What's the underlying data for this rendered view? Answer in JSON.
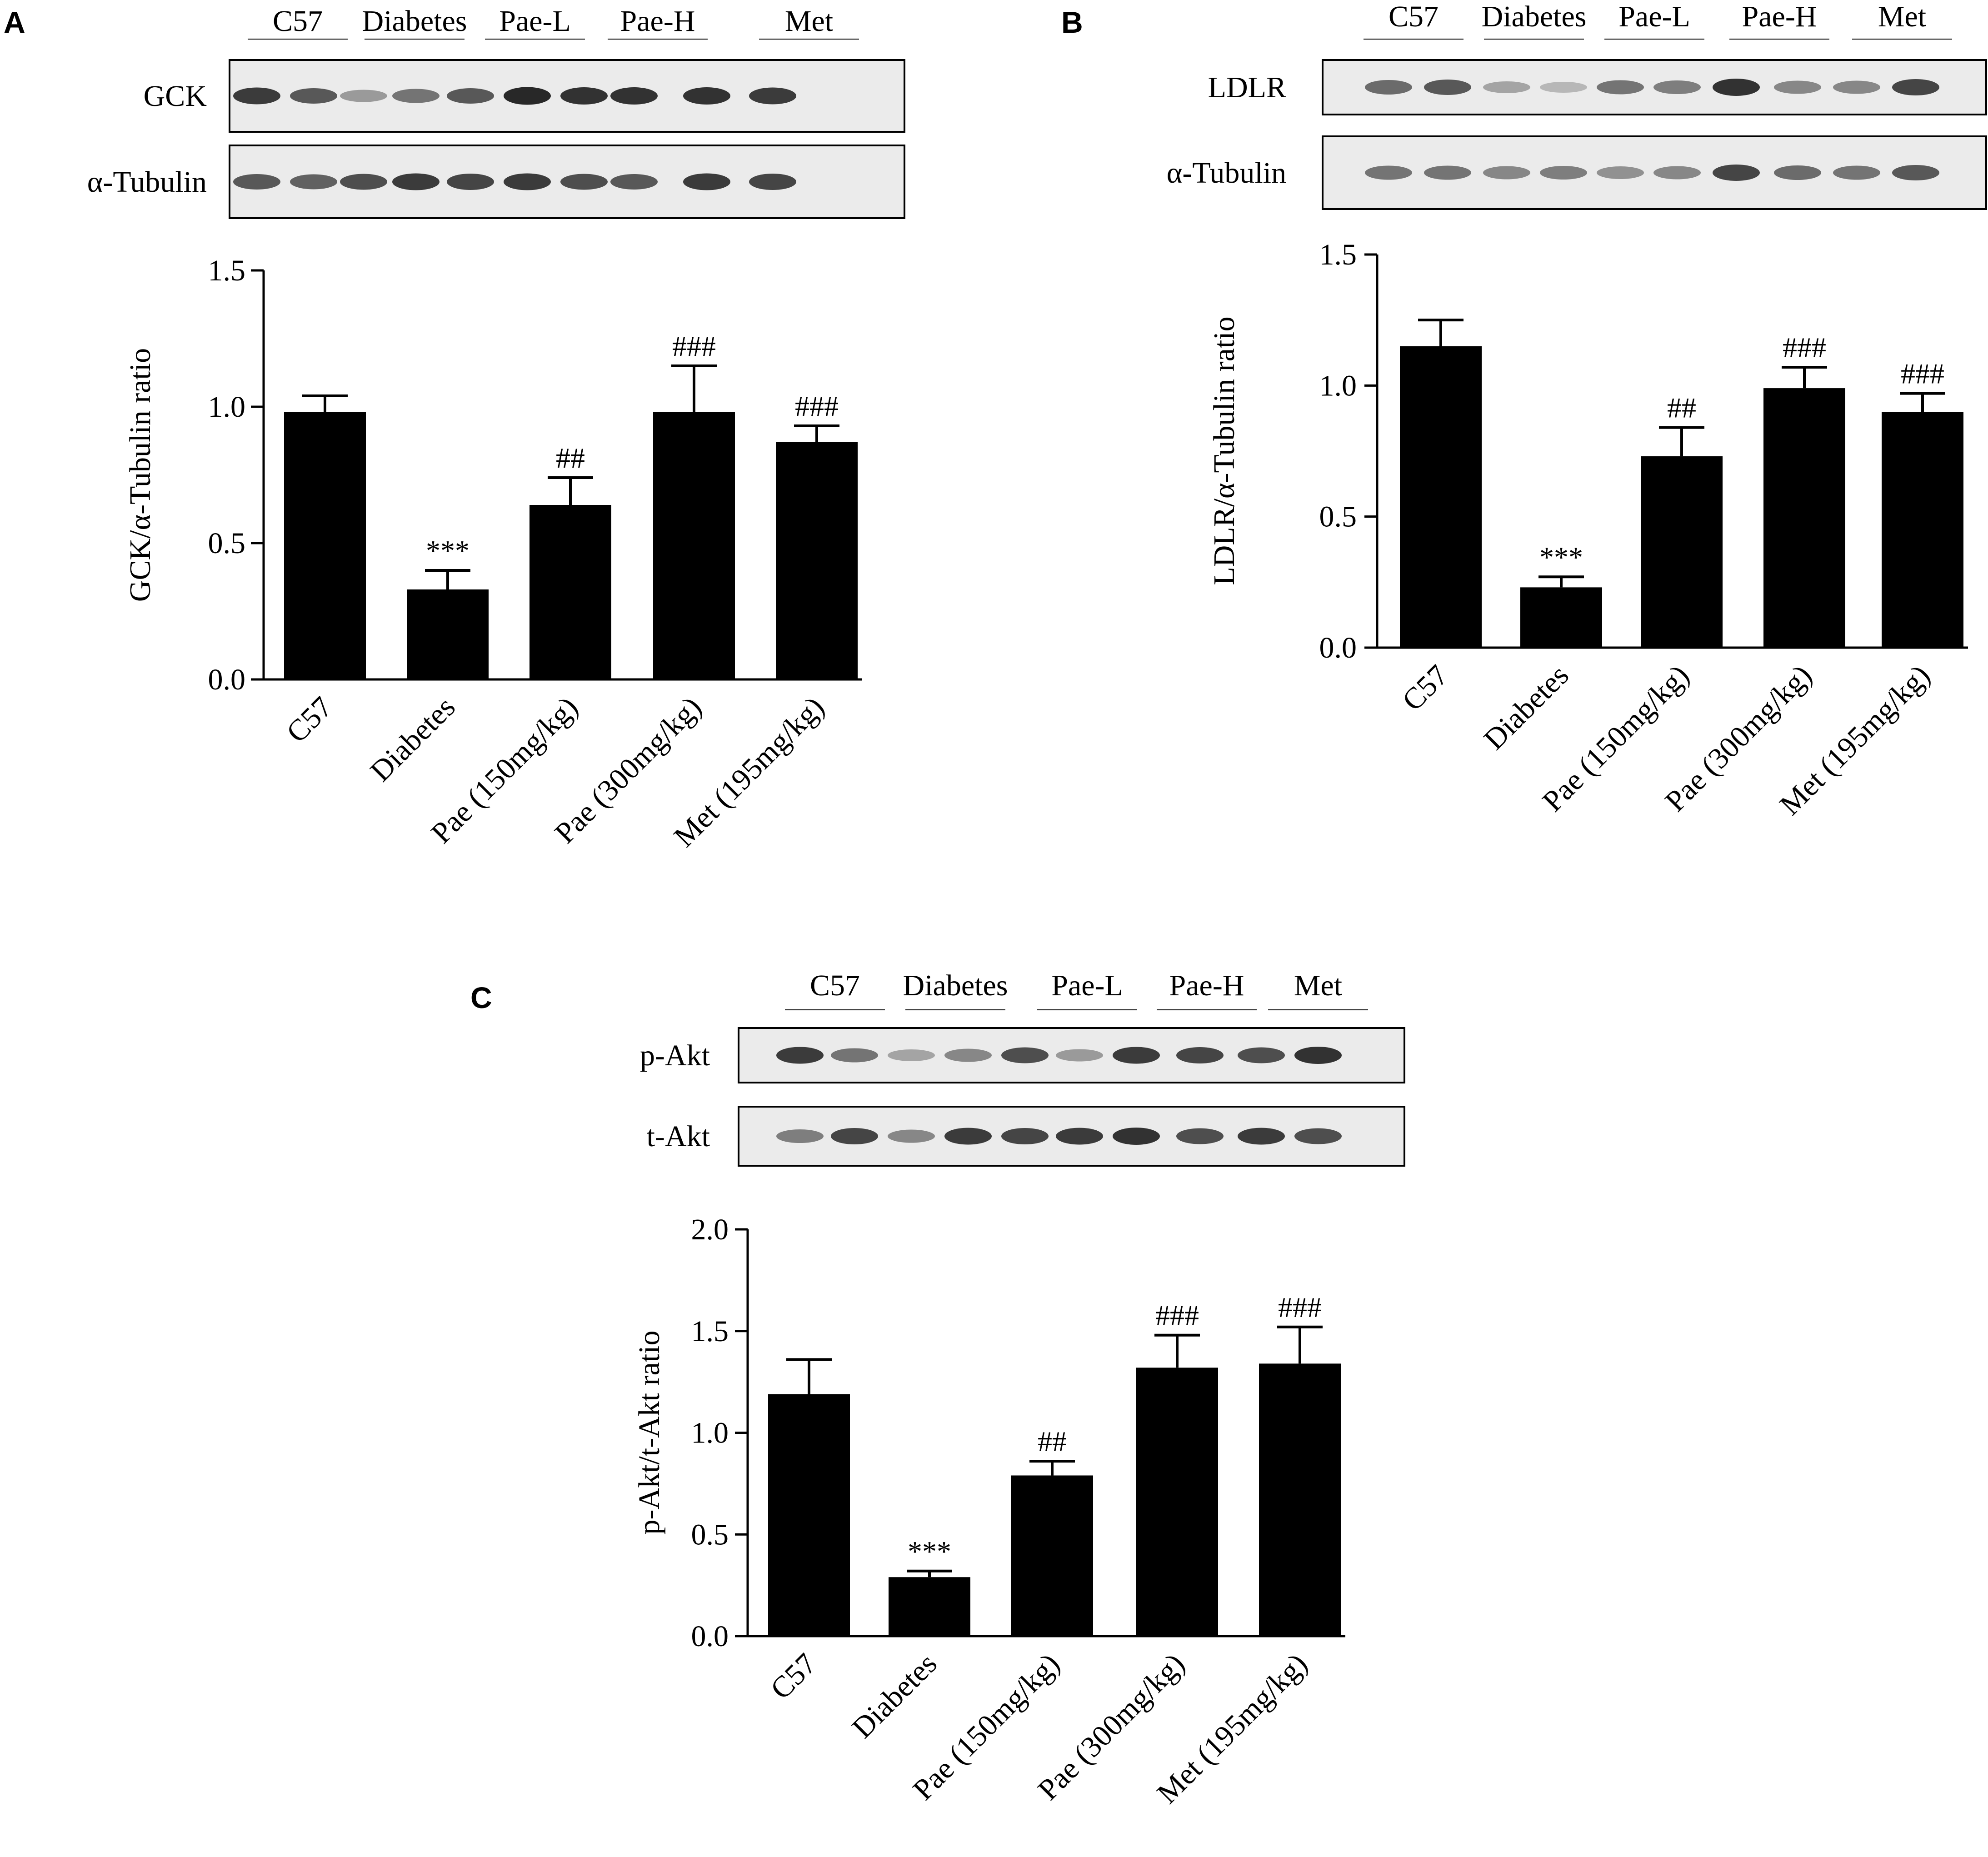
{
  "panels": {
    "A": {
      "letter": "A",
      "blot": {
        "groups": [
          "C57",
          "Diabetes",
          "Pae-L",
          "Pae-H",
          "Met"
        ],
        "rows": [
          {
            "label": "GCK",
            "intensity": [
              0.85,
              0.7,
              0.35,
              0.55,
              0.7,
              0.95,
              0.9,
              0.9,
              0.9,
              0.85
            ]
          },
          {
            "label": "α-Tubulin",
            "intensity": [
              0.7,
              0.65,
              0.75,
              0.85,
              0.8,
              0.85,
              0.75,
              0.7,
              0.85,
              0.8
            ]
          }
        ]
      }
    },
    "B": {
      "letter": "B",
      "blot": {
        "groups": [
          "C57",
          "Diabetes",
          "Pae-L",
          "Pae-H",
          "Met"
        ],
        "rows": [
          {
            "label": "LDLR",
            "intensity": [
              0.6,
              0.7,
              0.3,
              0.2,
              0.55,
              0.5,
              0.9,
              0.45,
              0.45,
              0.8
            ]
          },
          {
            "label": "α-Tubulin",
            "intensity": [
              0.55,
              0.55,
              0.45,
              0.5,
              0.4,
              0.45,
              0.8,
              0.6,
              0.55,
              0.7
            ]
          }
        ]
      }
    },
    "C": {
      "letter": "C",
      "blot": {
        "groups": [
          "C57",
          "Diabetes",
          "Pae-L",
          "Pae-H",
          "Met"
        ],
        "rows": [
          {
            "label": "p-Akt",
            "intensity": [
              0.85,
              0.55,
              0.3,
              0.45,
              0.75,
              0.35,
              0.85,
              0.8,
              0.75,
              0.9
            ]
          },
          {
            "label": "t-Akt",
            "intensity": [
              0.5,
              0.8,
              0.45,
              0.85,
              0.8,
              0.85,
              0.9,
              0.75,
              0.85,
              0.75
            ]
          }
        ]
      }
    }
  },
  "chart_data": [
    {
      "type": "bar",
      "panel": "A",
      "categories": [
        "C57",
        "Diabetes",
        "Pae (150mg/kg)",
        "Pae (300mg/kg)",
        "Met (195mg/kg)"
      ],
      "values": [
        0.98,
        0.33,
        0.64,
        0.98,
        0.87
      ],
      "errors": [
        0.06,
        0.07,
        0.1,
        0.17,
        0.06
      ],
      "annotations": [
        "",
        "***",
        "##",
        "###",
        "###"
      ],
      "ylabel": "GCK/α-Tubulin ratio",
      "xlabel": "",
      "ylim": [
        0,
        1.5
      ],
      "yticks": [
        "0.0",
        "0.5",
        "1.0",
        "1.5"
      ],
      "bar_color": "#000000",
      "grid": false
    },
    {
      "type": "bar",
      "panel": "B",
      "categories": [
        "C57",
        "Diabetes",
        "Pae (150mg/kg)",
        "Pae (300mg/kg)",
        "Met (195mg/kg)"
      ],
      "values": [
        1.15,
        0.23,
        0.73,
        0.99,
        0.9
      ],
      "errors": [
        0.1,
        0.04,
        0.11,
        0.08,
        0.07
      ],
      "annotations": [
        "",
        "***",
        "##",
        "###",
        "###"
      ],
      "ylabel": "LDLR/α-Tubulin ratio",
      "xlabel": "",
      "ylim": [
        0,
        1.5
      ],
      "yticks": [
        "0.0",
        "0.5",
        "1.0",
        "1.5"
      ],
      "bar_color": "#000000",
      "grid": false
    },
    {
      "type": "bar",
      "panel": "C",
      "categories": [
        "C57",
        "Diabetes",
        "Pae (150mg/kg)",
        "Pae (300mg/kg)",
        "Met (195mg/kg)"
      ],
      "values": [
        1.19,
        0.29,
        0.79,
        1.32,
        1.34
      ],
      "errors": [
        0.17,
        0.03,
        0.07,
        0.16,
        0.18
      ],
      "annotations": [
        "",
        "***",
        "##",
        "###",
        "###"
      ],
      "ylabel": "p-Akt/t-Akt ratio",
      "xlabel": "",
      "ylim": [
        0,
        2.0
      ],
      "yticks": [
        "0.0",
        "0.5",
        "1.0",
        "1.5",
        "2.0"
      ],
      "bar_color": "#000000",
      "grid": false
    }
  ]
}
